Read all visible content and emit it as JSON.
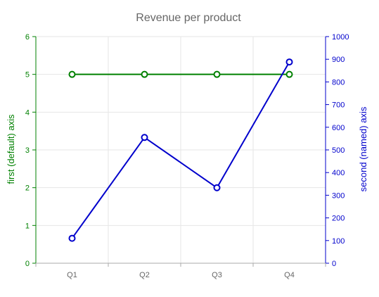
{
  "chart_data": {
    "type": "line",
    "title": "Revenue per product",
    "categories": [
      "Q1",
      "Q2",
      "Q3",
      "Q4"
    ],
    "grid": true,
    "axes": {
      "left": {
        "label": "first (default) axis",
        "ylim": [
          0,
          6
        ],
        "ticks": [
          0,
          1,
          2,
          3,
          4,
          5,
          6
        ],
        "color": "#008000"
      },
      "right": {
        "label": "second (named) axis",
        "ylim": [
          0,
          1000
        ],
        "ticks": [
          0,
          100,
          200,
          300,
          400,
          500,
          600,
          700,
          800,
          900,
          1000
        ],
        "color": "#0000cc"
      }
    },
    "series": [
      {
        "axis": "left",
        "color": "#008000",
        "values": [
          5,
          5,
          5,
          5
        ]
      },
      {
        "axis": "right",
        "color": "#0000cc",
        "values": [
          110,
          555,
          333,
          888
        ]
      }
    ]
  }
}
